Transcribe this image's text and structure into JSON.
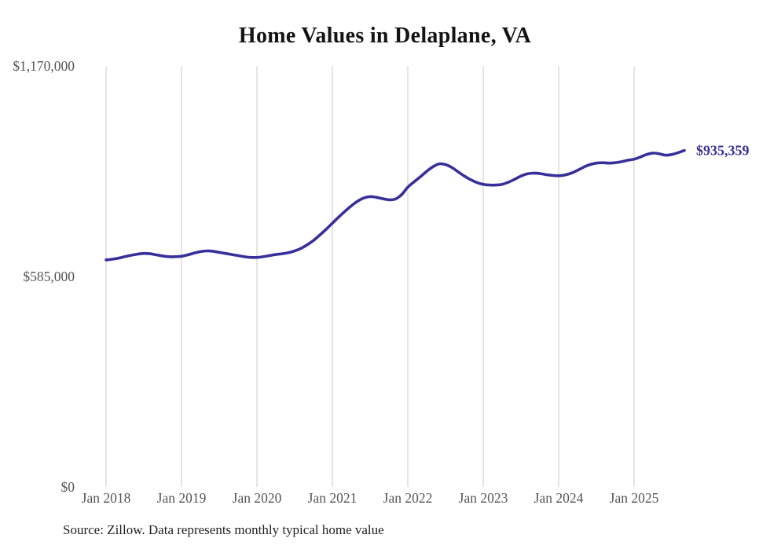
{
  "title": "Home Values in Delaplane, VA",
  "source_note": "Source: Zillow. Data represents monthly typical home value",
  "colors": {
    "line": "#37309b",
    "end_label": "#37309b",
    "grid": "#c8c8c8",
    "axis_text": "#545454",
    "title_text": "#141414",
    "source_text": "#1f1f1f",
    "background": "#ffffff"
  },
  "chart_data": {
    "type": "line",
    "title": "Home Values in Delaplane, VA",
    "xlabel": "",
    "ylabel": "",
    "x_start": "Jan 2018",
    "x_end": "Sep 2025",
    "frequency": "monthly",
    "ylim": [
      0,
      1170000
    ],
    "grid": "vertical-only",
    "legend": "none",
    "x_ticks": [
      {
        "label": "Jan 2018",
        "month_index": 0
      },
      {
        "label": "Jan 2019",
        "month_index": 12
      },
      {
        "label": "Jan 2020",
        "month_index": 24
      },
      {
        "label": "Jan 2021",
        "month_index": 36
      },
      {
        "label": "Jan 2022",
        "month_index": 48
      },
      {
        "label": "Jan 2023",
        "month_index": 60
      },
      {
        "label": "Jan 2024",
        "month_index": 72
      },
      {
        "label": "Jan 2025",
        "month_index": 84
      }
    ],
    "y_ticks": [
      {
        "label": "$0",
        "value": 0
      },
      {
        "label": "$585,000",
        "value": 585000
      },
      {
        "label": "$1,170,000",
        "value": 1170000
      }
    ],
    "series": [
      {
        "name": "Typical home value",
        "start": "Jan 2018",
        "values": [
          631000,
          633000,
          636000,
          640000,
          644000,
          647000,
          649000,
          648000,
          645000,
          642000,
          640000,
          640000,
          641000,
          645000,
          650000,
          654000,
          656000,
          655000,
          652000,
          649000,
          646000,
          643000,
          640000,
          638000,
          638000,
          640000,
          643000,
          646000,
          648000,
          651000,
          656000,
          663000,
          673000,
          685000,
          700000,
          716000,
          733000,
          750000,
          766000,
          781000,
          794000,
          803000,
          807000,
          805000,
          801000,
          798000,
          800000,
          812000,
          833000,
          848000,
          862000,
          877000,
          890000,
          898000,
          896000,
          888000,
          876000,
          864000,
          854000,
          846000,
          841000,
          839000,
          839000,
          841000,
          847000,
          855000,
          864000,
          870000,
          872000,
          871000,
          868000,
          866000,
          865000,
          867000,
          872000,
          880000,
          889000,
          896000,
          900000,
          901000,
          900000,
          901000,
          904000,
          908000,
          911000,
          917000,
          924000,
          928000,
          926000,
          922000,
          924000,
          929000,
          935359
        ]
      }
    ],
    "last_point": {
      "month": "Sep 2025",
      "value": 935359,
      "label": "$935,359"
    }
  }
}
